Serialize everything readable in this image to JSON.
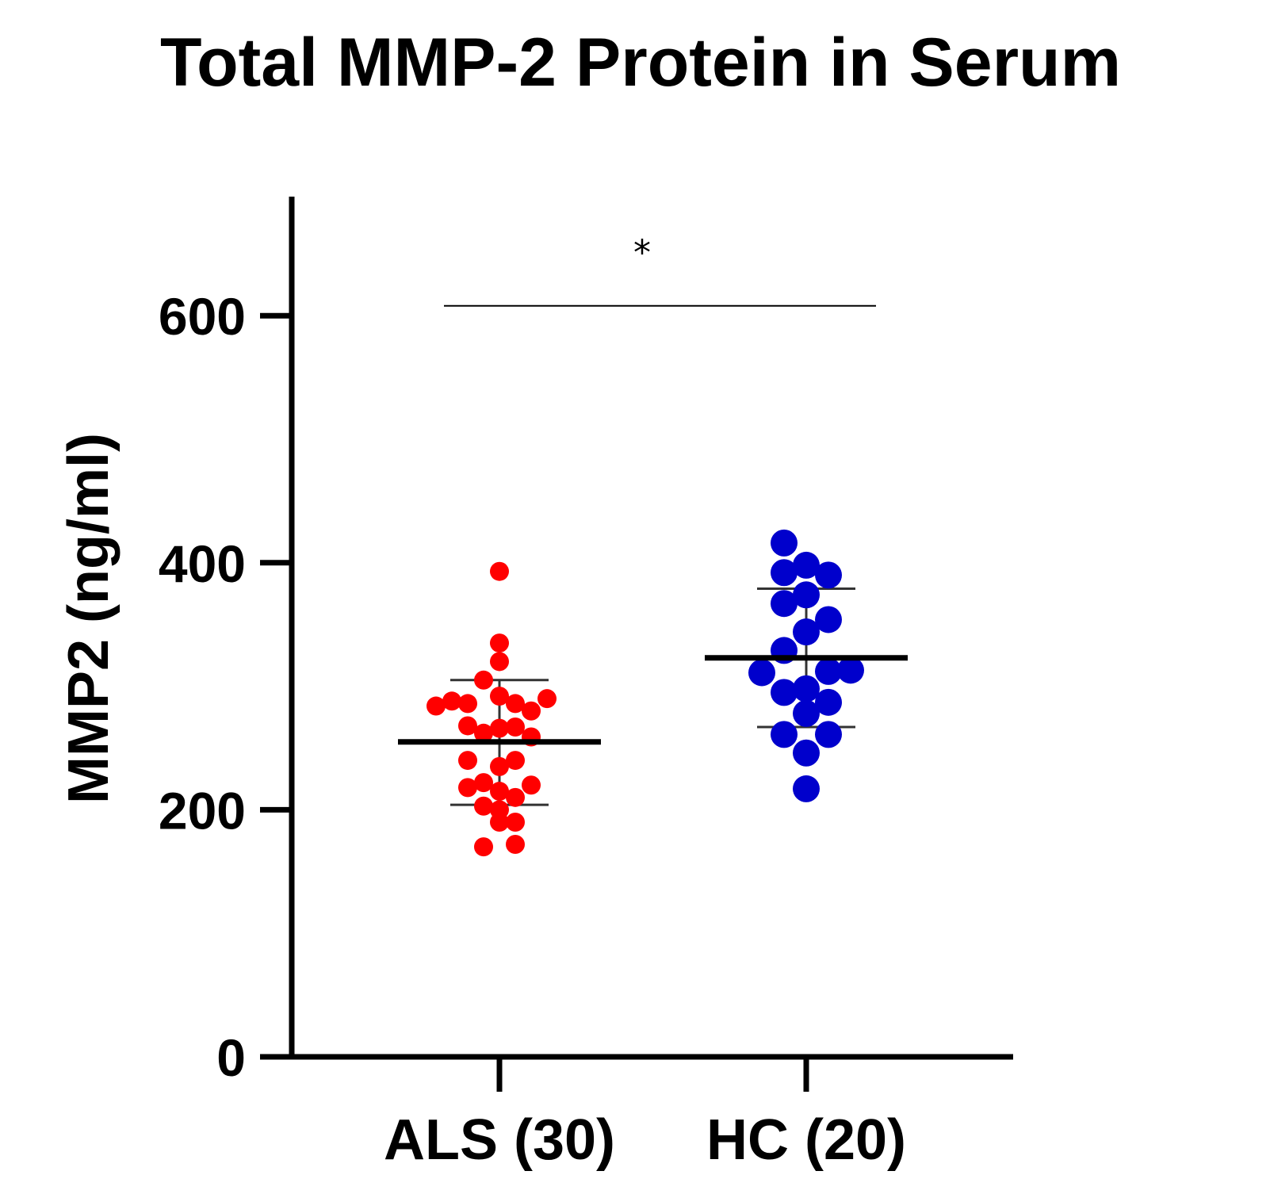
{
  "chart_data": {
    "type": "scatter",
    "title": "Total MMP-2 Protein in Serum",
    "ylabel": "MMP2 (ng/ml)",
    "xlabel": "",
    "ylim": [
      0,
      690
    ],
    "yticks": [
      0,
      200,
      400,
      600
    ],
    "ytick_labels": [
      "0",
      "200",
      "400",
      "600"
    ],
    "categories": [
      "ALS (30)",
      "HC (20)"
    ],
    "grid": false,
    "legend": "none",
    "series": [
      {
        "category": "ALS (30)",
        "color": "#ff0000",
        "points": [
          {
            "offset": 0,
            "y": 393
          },
          {
            "offset": 0,
            "y": 335
          },
          {
            "offset": 0,
            "y": 320
          },
          {
            "offset": -1,
            "y": 305
          },
          {
            "offset": 0,
            "y": 292
          },
          {
            "offset": 3,
            "y": 290
          },
          {
            "offset": -3,
            "y": 288
          },
          {
            "offset": -2,
            "y": 286
          },
          {
            "offset": 1,
            "y": 286
          },
          {
            "offset": -4,
            "y": 284
          },
          {
            "offset": 2,
            "y": 280
          },
          {
            "offset": -2,
            "y": 268
          },
          {
            "offset": 1,
            "y": 267
          },
          {
            "offset": 0,
            "y": 266
          },
          {
            "offset": -1,
            "y": 262
          },
          {
            "offset": 2,
            "y": 259
          },
          {
            "offset": 1,
            "y": 240
          },
          {
            "offset": -2,
            "y": 240
          },
          {
            "offset": 0,
            "y": 235
          },
          {
            "offset": -1,
            "y": 222
          },
          {
            "offset": 2,
            "y": 220
          },
          {
            "offset": -2,
            "y": 218
          },
          {
            "offset": 0,
            "y": 215
          },
          {
            "offset": 1,
            "y": 210
          },
          {
            "offset": -1,
            "y": 203
          },
          {
            "offset": 1,
            "y": 190
          },
          {
            "offset": 0,
            "y": 190
          },
          {
            "offset": 1,
            "y": 172
          },
          {
            "offset": -1,
            "y": 170
          },
          {
            "offset": 0,
            "y": 200
          }
        ],
        "mean": 255,
        "sd_upper": 305,
        "sd_lower": 204
      },
      {
        "category": "HC (20)",
        "color": "#0000cc",
        "points": [
          {
            "offset": -1,
            "y": 416
          },
          {
            "offset": -1,
            "y": 392
          },
          {
            "offset": 0,
            "y": 398
          },
          {
            "offset": 1,
            "y": 390
          },
          {
            "offset": -1,
            "y": 367
          },
          {
            "offset": 0,
            "y": 374
          },
          {
            "offset": 1,
            "y": 354
          },
          {
            "offset": 0,
            "y": 344
          },
          {
            "offset": -1,
            "y": 329
          },
          {
            "offset": -2,
            "y": 311
          },
          {
            "offset": 2,
            "y": 313
          },
          {
            "offset": 1,
            "y": 312
          },
          {
            "offset": 0,
            "y": 298
          },
          {
            "offset": -1,
            "y": 295
          },
          {
            "offset": 1,
            "y": 287
          },
          {
            "offset": 0,
            "y": 278
          },
          {
            "offset": -1,
            "y": 261
          },
          {
            "offset": 1,
            "y": 261
          },
          {
            "offset": 0,
            "y": 246
          },
          {
            "offset": 0,
            "y": 217
          }
        ],
        "mean": 323,
        "sd_upper": 379,
        "sd_lower": 267
      }
    ],
    "significance": {
      "label": "*",
      "y": 608,
      "from": "ALS (30)",
      "to": "HC (20)"
    }
  }
}
